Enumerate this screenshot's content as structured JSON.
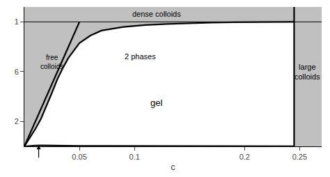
{
  "chart_data": {
    "type": "line",
    "xlabel": "c",
    "xlim": [
      0.0,
      0.27
    ],
    "ylim": [
      0.0,
      1.12
    ],
    "xticks": [
      0.05,
      0.1,
      0.2,
      0.25
    ],
    "yticks": [
      {
        "value": 0.2,
        "label": "2"
      },
      {
        "value": 0.6,
        "label": "6"
      },
      {
        "value": 1.0,
        "label": "1"
      }
    ],
    "grid": false,
    "color": "#c0c0c0",
    "vertical_line_x": 0.245,
    "horizontal_line_y": 1.0,
    "series": [
      {
        "type": "line",
        "color": "#000000",
        "x": [
          0.0,
          0.003,
          0.006,
          0.01,
          0.015,
          0.02,
          0.025,
          0.03,
          0.035,
          0.04,
          0.05,
          0.06,
          0.07,
          0.09,
          0.11,
          0.13,
          0.15,
          0.17,
          0.19,
          0.21,
          0.225,
          0.235,
          0.245
        ],
        "values": [
          0.0,
          0.04,
          0.08,
          0.14,
          0.22,
          0.32,
          0.43,
          0.54,
          0.63,
          0.71,
          0.83,
          0.89,
          0.93,
          0.96,
          0.975,
          0.984,
          0.99,
          0.994,
          0.997,
          0.999,
          1.0,
          1.0,
          1.0
        ]
      },
      {
        "type": "line",
        "color": "#000000",
        "x": [
          0.0,
          0.003,
          0.006,
          0.01,
          0.015,
          0.02,
          0.025,
          0.03,
          0.04,
          0.05,
          0.07,
          0.1,
          0.14,
          0.18,
          0.22,
          0.235,
          0.245
        ],
        "values": [
          0.0,
          0.003,
          0.005,
          0.007,
          0.008,
          0.008,
          0.007,
          0.006,
          0.005,
          0.004,
          0.003,
          0.002,
          0.001,
          0.001,
          0.0005,
          0.0005,
          0.0005
        ]
      },
      {
        "type": "line",
        "color": "#000000",
        "x": [
          0.0,
          0.05
        ],
        "values": [
          0.0,
          1.0
        ]
      }
    ],
    "annotations": [
      "dense colloids",
      "free\ncolloids",
      "2 phases",
      "gel",
      "large\ncolloids"
    ],
    "arrow": {
      "x": 0.013,
      "tip_y": 0.01,
      "tail_y": -0.1
    }
  }
}
